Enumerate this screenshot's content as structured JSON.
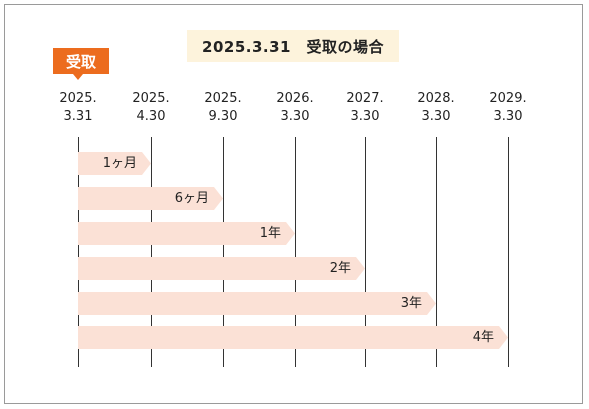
{
  "title": "2025.3.31　受取の場合",
  "badge": "受取",
  "dates": [
    {
      "year": "2025.",
      "day": "3.31"
    },
    {
      "year": "2025.",
      "day": "4.30"
    },
    {
      "year": "2025.",
      "day": "9.30"
    },
    {
      "year": "2026.",
      "day": "3.30"
    },
    {
      "year": "2027.",
      "day": "3.30"
    },
    {
      "year": "2028.",
      "day": "3.30"
    },
    {
      "year": "2029.",
      "day": "3.30"
    }
  ],
  "bars": [
    {
      "label": "1ヶ月",
      "end": 1
    },
    {
      "label": "6ヶ月",
      "end": 2
    },
    {
      "label": "1年",
      "end": 3
    },
    {
      "label": "2年",
      "end": 4
    },
    {
      "label": "3年",
      "end": 5
    },
    {
      "label": "4年",
      "end": 6
    }
  ],
  "colors": {
    "badge": "#ec6c1e",
    "title_bg": "#fdf3dc",
    "bar": "#fbe1d6",
    "line": "#333333"
  }
}
